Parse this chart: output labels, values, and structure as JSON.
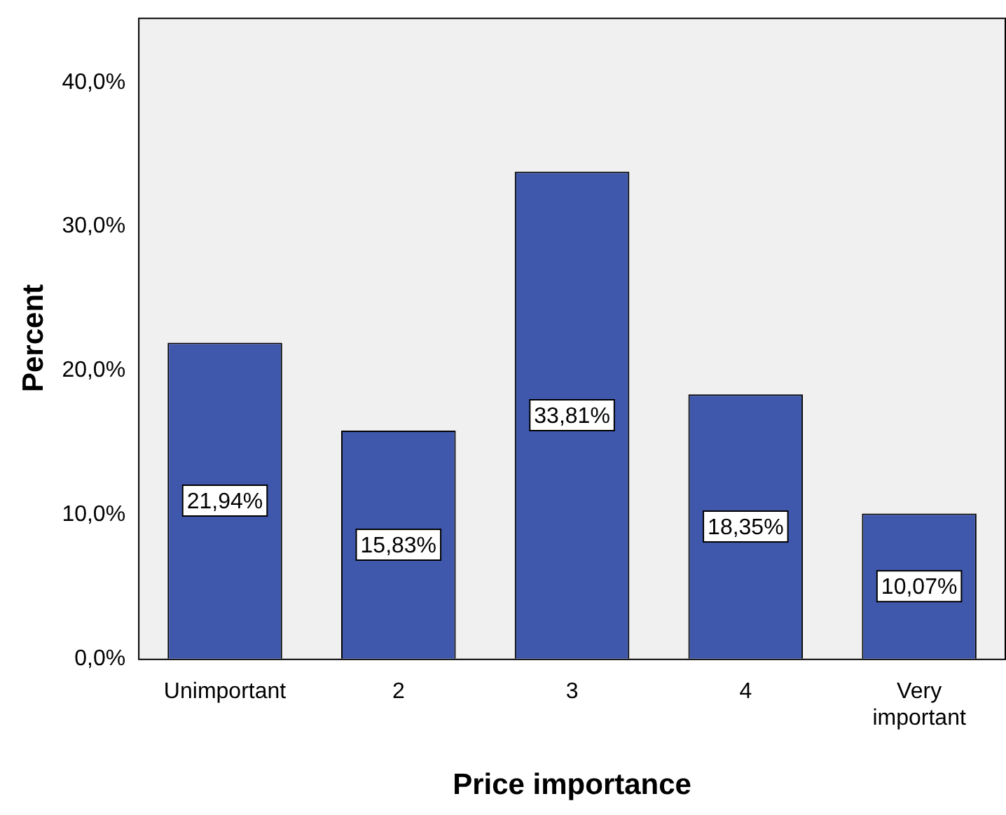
{
  "chart_data": {
    "type": "bar",
    "xlabel": "Price importance",
    "ylabel": "Percent",
    "categories": [
      "Unimportant",
      "2",
      "3",
      "4",
      "Very important"
    ],
    "values": [
      21.94,
      15.83,
      33.81,
      18.35,
      10.07
    ],
    "value_labels": [
      "21,94%",
      "15,83%",
      "33,81%",
      "18,35%",
      "10,07%"
    ],
    "color": "#3f58ab",
    "ylim": [
      0,
      44.5
    ],
    "yticks": [
      {
        "value": 0,
        "label": "0,0%"
      },
      {
        "value": 10,
        "label": "10,0%"
      },
      {
        "value": 20,
        "label": "20,0%"
      },
      {
        "value": 30,
        "label": "30,0%"
      },
      {
        "value": 40,
        "label": "40,0%"
      }
    ],
    "grid": false,
    "legend": false
  }
}
